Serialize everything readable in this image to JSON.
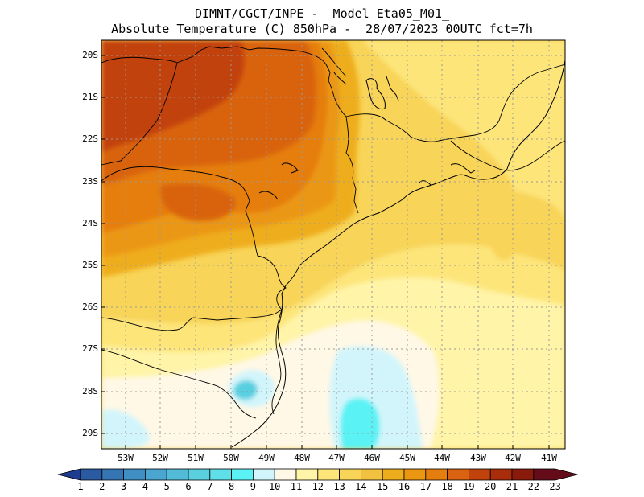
{
  "title": {
    "line1": "DIMNT/CGCT/INPE -  Model Eta05_M01_",
    "line2": "Absolute Temperature (C) 850hPa -  28/07/2023 00UTC fct=7h"
  },
  "map": {
    "lat_labels": [
      "20S",
      "21S",
      "22S",
      "23S",
      "24S",
      "25S",
      "26S",
      "27S",
      "28S",
      "29S"
    ],
    "lon_labels": [
      "53W",
      "52W",
      "51W",
      "50W",
      "49W",
      "48W",
      "47W",
      "46W",
      "45W",
      "44W",
      "43W",
      "42W",
      "41W"
    ]
  },
  "colorbar": {
    "labels": [
      "1",
      "2",
      "3",
      "4",
      "5",
      "6",
      "7",
      "8",
      "9",
      "10",
      "11",
      "12",
      "13",
      "14",
      "15",
      "16",
      "17",
      "18",
      "19",
      "20",
      "21",
      "22",
      "23"
    ],
    "colors": [
      "#1d3b8f",
      "#2a5aa2",
      "#3575b4",
      "#3f8fc4",
      "#4aa6d1",
      "#52bcd8",
      "#59cfe0",
      "#5fdfe8",
      "#5af2f5",
      "#d2f5fb",
      "#fff8e6",
      "#fff4a8",
      "#fde57a",
      "#f8d458",
      "#f2c140",
      "#eead1c",
      "#eb9712",
      "#e57e0e",
      "#d96310",
      "#c2420b",
      "#a82d0b",
      "#8a1a0b",
      "#640c19"
    ]
  }
}
